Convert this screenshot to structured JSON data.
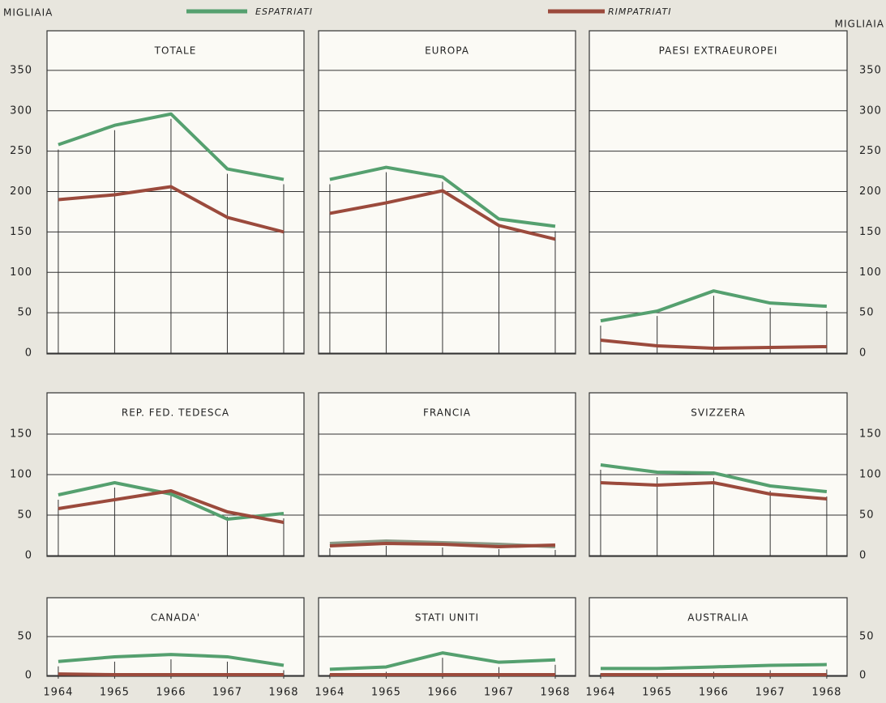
{
  "units_left": "MIGLIAIA",
  "units_right": "MIGLIAIA",
  "chart_data": [
    {
      "type": "line",
      "title": "TOTALE",
      "x": [
        1964,
        1965,
        1966,
        1967,
        1968
      ],
      "xlim": [
        1963.8,
        1968.36
      ],
      "ylim": [
        0,
        399
      ],
      "yticks": [
        0,
        50,
        100,
        150,
        200,
        250,
        300,
        350
      ],
      "grid": true,
      "series": [
        {
          "name": "ESPATRIATI",
          "color": "#55a06f",
          "values": [
            258,
            282,
            296,
            228,
            215
          ]
        },
        {
          "name": "RIMPATRIATI",
          "color": "#9b4a3c",
          "values": [
            190,
            196,
            206,
            168,
            150
          ]
        }
      ]
    },
    {
      "type": "line",
      "title": "EUROPA",
      "x": [
        1964,
        1965,
        1966,
        1967,
        1968
      ],
      "xlim": [
        1963.8,
        1968.36
      ],
      "ylim": [
        0,
        399
      ],
      "yticks": [
        0,
        50,
        100,
        150,
        200,
        250,
        300,
        350
      ],
      "grid": true,
      "series": [
        {
          "name": "ESPATRIATI",
          "color": "#55a06f",
          "values": [
            215,
            230,
            218,
            166,
            157
          ]
        },
        {
          "name": "RIMPATRIATI",
          "color": "#9b4a3c",
          "values": [
            173,
            186,
            201,
            158,
            141
          ]
        }
      ]
    },
    {
      "type": "line",
      "title": "PAESI  EXTRAEUROPEI",
      "x": [
        1964,
        1965,
        1966,
        1967,
        1968
      ],
      "xlim": [
        1963.8,
        1968.36
      ],
      "ylim": [
        0,
        399
      ],
      "yticks": [
        0,
        50,
        100,
        150,
        200,
        250,
        300,
        350
      ],
      "grid": true,
      "series": [
        {
          "name": "ESPATRIATI",
          "color": "#55a06f",
          "values": [
            40,
            52,
            77,
            62,
            58
          ]
        },
        {
          "name": "RIMPATRIATI",
          "color": "#9b4a3c",
          "values": [
            16,
            9,
            6,
            7,
            8
          ]
        }
      ]
    },
    {
      "type": "line",
      "title": "REP. FED. TEDESCA",
      "x": [
        1964,
        1965,
        1966,
        1967,
        1968
      ],
      "xlim": [
        1963.8,
        1968.36
      ],
      "ylim": [
        0,
        201
      ],
      "yticks": [
        0,
        50,
        100,
        150
      ],
      "grid": true,
      "series": [
        {
          "name": "ESPATRIATI",
          "color": "#55a06f",
          "values": [
            75,
            90,
            76,
            45,
            52
          ]
        },
        {
          "name": "RIMPATRIATI",
          "color": "#9b4a3c",
          "values": [
            58,
            69,
            80,
            54,
            41
          ]
        }
      ]
    },
    {
      "type": "line",
      "title": "FRANCIA",
      "x": [
        1964,
        1965,
        1966,
        1967,
        1968
      ],
      "xlim": [
        1963.8,
        1968.36
      ],
      "ylim": [
        0,
        201
      ],
      "yticks": [
        0,
        50,
        100,
        150
      ],
      "grid": true,
      "series": [
        {
          "name": "ESPATRIATI",
          "color": "#8a9a86",
          "values": [
            15,
            18,
            16,
            14,
            11
          ]
        },
        {
          "name": "RIMPATRIATI",
          "color": "#9b4a3c",
          "values": [
            12,
            15,
            14,
            11,
            13
          ]
        }
      ]
    },
    {
      "type": "line",
      "title": "SVIZZERA",
      "x": [
        1964,
        1965,
        1966,
        1967,
        1968
      ],
      "xlim": [
        1963.8,
        1968.36
      ],
      "ylim": [
        0,
        201
      ],
      "yticks": [
        0,
        50,
        100,
        150
      ],
      "grid": true,
      "series": [
        {
          "name": "ESPATRIATI",
          "color": "#55a06f",
          "values": [
            112,
            103,
            102,
            86,
            79
          ]
        },
        {
          "name": "RIMPATRIATI",
          "color": "#9b4a3c",
          "values": [
            90,
            87,
            90,
            76,
            70
          ]
        }
      ]
    },
    {
      "type": "line",
      "title": "CANADA'",
      "x": [
        1964,
        1965,
        1966,
        1967,
        1968
      ],
      "xlim": [
        1963.8,
        1968.36
      ],
      "xticks": [
        1964,
        1965,
        1966,
        1967,
        1968
      ],
      "ylim": [
        0,
        100
      ],
      "yticks": [
        0,
        50
      ],
      "grid": true,
      "series": [
        {
          "name": "ESPATRIATI",
          "color": "#55a06f",
          "values": [
            18,
            24,
            27,
            24,
            13
          ]
        },
        {
          "name": "RIMPATRIATI",
          "color": "#9b4a3c",
          "values": [
            2,
            1,
            1,
            1,
            1
          ]
        }
      ]
    },
    {
      "type": "line",
      "title": "STATI UNITI",
      "x": [
        1964,
        1965,
        1966,
        1967,
        1968
      ],
      "xlim": [
        1963.8,
        1968.36
      ],
      "xticks": [
        1964,
        1965,
        1966,
        1967,
        1968
      ],
      "ylim": [
        0,
        100
      ],
      "yticks": [
        0,
        50
      ],
      "grid": true,
      "series": [
        {
          "name": "ESPATRIATI",
          "color": "#55a06f",
          "values": [
            8,
            11,
            29,
            17,
            20
          ]
        },
        {
          "name": "RIMPATRIATI",
          "color": "#9b4a3c",
          "values": [
            1,
            1,
            1,
            1,
            1
          ]
        }
      ]
    },
    {
      "type": "line",
      "title": "AUSTRALIA",
      "x": [
        1964,
        1965,
        1966,
        1967,
        1968
      ],
      "xlim": [
        1963.8,
        1968.36
      ],
      "xticks": [
        1964,
        1965,
        1966,
        1967,
        1968
      ],
      "ylim": [
        0,
        100
      ],
      "yticks": [
        0,
        50
      ],
      "grid": true,
      "series": [
        {
          "name": "ESPATRIATI",
          "color": "#55a06f",
          "values": [
            9,
            9,
            11,
            13,
            14
          ]
        },
        {
          "name": "RIMPATRIATI",
          "color": "#9b4a3c",
          "values": [
            1,
            1,
            1,
            1,
            1
          ]
        }
      ]
    }
  ]
}
